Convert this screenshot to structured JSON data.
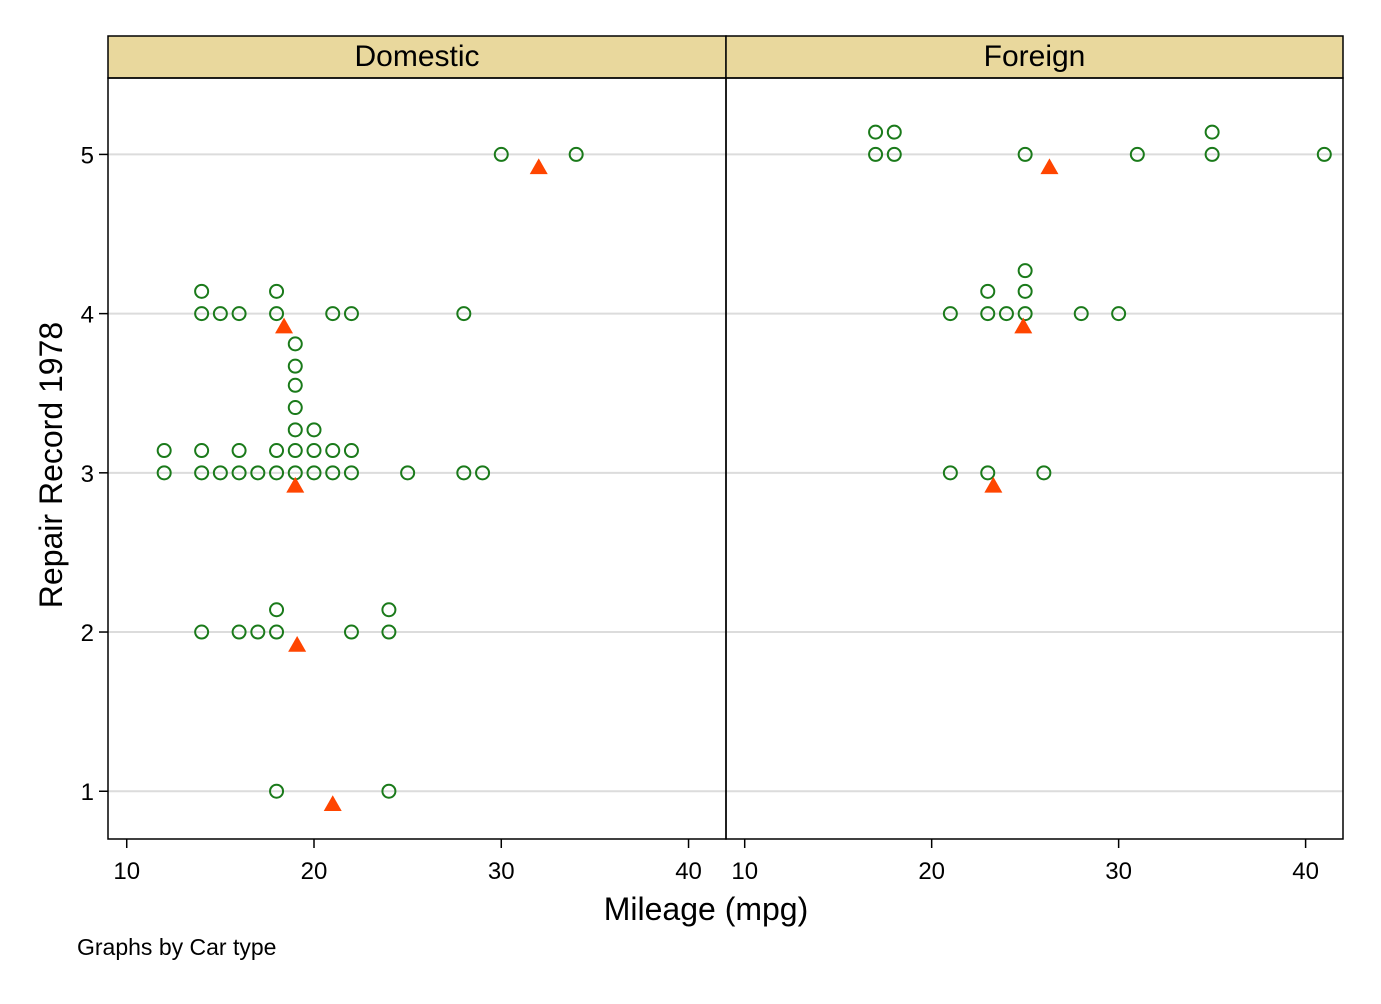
{
  "chart_data": {
    "type": "scatter",
    "xlabel": "Mileage (mpg)",
    "ylabel": "Repair Record 1978",
    "note": "Graphs by Car type",
    "xlim": [
      9,
      42
    ],
    "ylim": [
      0.7,
      5.48
    ],
    "xticks": [
      10,
      20,
      30,
      40
    ],
    "yticks": [
      1,
      2,
      3,
      4,
      5
    ],
    "grid": "horizontal",
    "colors": {
      "strip_bg": "#e9d89d",
      "point": "#1a7a1a",
      "mean_marker": "#ff4500",
      "grid": "#dcdcdc",
      "frame": "#000000"
    },
    "panels": [
      {
        "label": "Domestic",
        "points": [
          {
            "x": 30,
            "y": 5.0
          },
          {
            "x": 34,
            "y": 5.0
          },
          {
            "x": 14,
            "y": 4.0
          },
          {
            "x": 15,
            "y": 4.0
          },
          {
            "x": 16,
            "y": 4.0
          },
          {
            "x": 18,
            "y": 4.0
          },
          {
            "x": 21,
            "y": 4.0
          },
          {
            "x": 22,
            "y": 4.0
          },
          {
            "x": 28,
            "y": 4.0
          },
          {
            "x": 14,
            "y": 4.14
          },
          {
            "x": 18,
            "y": 4.14
          },
          {
            "x": 19,
            "y": 3.81
          },
          {
            "x": 19,
            "y": 3.67
          },
          {
            "x": 19,
            "y": 3.55
          },
          {
            "x": 19,
            "y": 3.41
          },
          {
            "x": 19,
            "y": 3.27
          },
          {
            "x": 20,
            "y": 3.27
          },
          {
            "x": 12,
            "y": 3.14
          },
          {
            "x": 14,
            "y": 3.14
          },
          {
            "x": 16,
            "y": 3.14
          },
          {
            "x": 18,
            "y": 3.14
          },
          {
            "x": 19,
            "y": 3.14
          },
          {
            "x": 20,
            "y": 3.14
          },
          {
            "x": 21,
            "y": 3.14
          },
          {
            "x": 22,
            "y": 3.14
          },
          {
            "x": 12,
            "y": 3.0
          },
          {
            "x": 14,
            "y": 3.0
          },
          {
            "x": 15,
            "y": 3.0
          },
          {
            "x": 16,
            "y": 3.0
          },
          {
            "x": 17,
            "y": 3.0
          },
          {
            "x": 18,
            "y": 3.0
          },
          {
            "x": 19,
            "y": 3.0
          },
          {
            "x": 20,
            "y": 3.0
          },
          {
            "x": 21,
            "y": 3.0
          },
          {
            "x": 22,
            "y": 3.0
          },
          {
            "x": 25,
            "y": 3.0
          },
          {
            "x": 28,
            "y": 3.0
          },
          {
            "x": 29,
            "y": 3.0
          },
          {
            "x": 18,
            "y": 2.14
          },
          {
            "x": 24,
            "y": 2.14
          },
          {
            "x": 14,
            "y": 2.0
          },
          {
            "x": 16,
            "y": 2.0
          },
          {
            "x": 17,
            "y": 2.0
          },
          {
            "x": 18,
            "y": 2.0
          },
          {
            "x": 22,
            "y": 2.0
          },
          {
            "x": 24,
            "y": 2.0
          },
          {
            "x": 18,
            "y": 1.0
          },
          {
            "x": 24,
            "y": 1.0
          }
        ],
        "means": [
          {
            "x": 32.0,
            "y": 5
          },
          {
            "x": 18.4,
            "y": 4
          },
          {
            "x": 19.0,
            "y": 3
          },
          {
            "x": 19.1,
            "y": 2
          },
          {
            "x": 21.0,
            "y": 1
          }
        ]
      },
      {
        "label": "Foreign",
        "points": [
          {
            "x": 17,
            "y": 5.14
          },
          {
            "x": 18,
            "y": 5.14
          },
          {
            "x": 35,
            "y": 5.14
          },
          {
            "x": 17,
            "y": 5.0
          },
          {
            "x": 18,
            "y": 5.0
          },
          {
            "x": 25,
            "y": 5.0
          },
          {
            "x": 31,
            "y": 5.0
          },
          {
            "x": 35,
            "y": 5.0
          },
          {
            "x": 41,
            "y": 5.0
          },
          {
            "x": 25,
            "y": 4.27
          },
          {
            "x": 23,
            "y": 4.14
          },
          {
            "x": 25,
            "y": 4.14
          },
          {
            "x": 21,
            "y": 4.0
          },
          {
            "x": 23,
            "y": 4.0
          },
          {
            "x": 24,
            "y": 4.0
          },
          {
            "x": 25,
            "y": 4.0
          },
          {
            "x": 28,
            "y": 4.0
          },
          {
            "x": 30,
            "y": 4.0
          },
          {
            "x": 21,
            "y": 3.0
          },
          {
            "x": 23,
            "y": 3.0
          },
          {
            "x": 26,
            "y": 3.0
          }
        ],
        "means": [
          {
            "x": 26.3,
            "y": 5
          },
          {
            "x": 24.9,
            "y": 4
          },
          {
            "x": 23.3,
            "y": 3
          }
        ]
      }
    ]
  }
}
